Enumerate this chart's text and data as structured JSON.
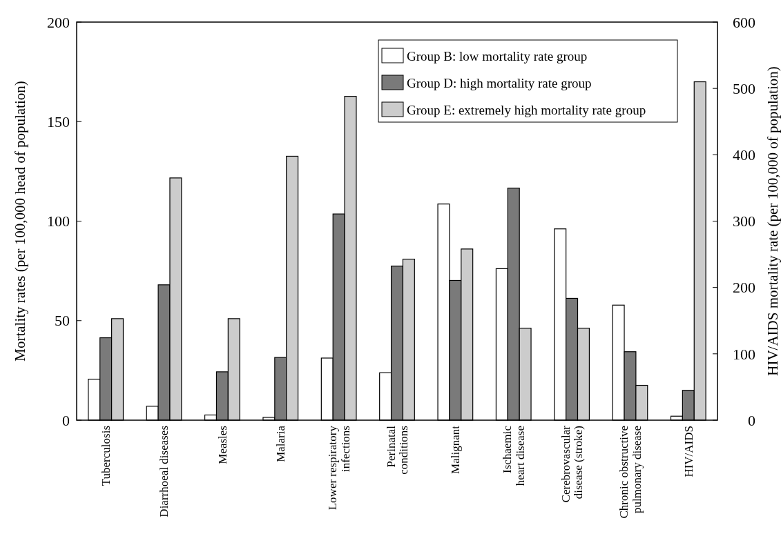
{
  "chart_data": {
    "type": "bar",
    "categories": [
      "Tuberculosis",
      "Diarrhoeal diseases",
      "Measles",
      "Malaria",
      "Lower respiratory\ninfections",
      "Perinatal\nconditions",
      "Malignant",
      "Ischaemic\nheart disease",
      "Cerebrovascular\ndisease (stroke)",
      "Chronic obstructive\npulmonary disease",
      "HIV/AIDS"
    ],
    "series": [
      {
        "name": "Group B: low mortality rate group",
        "color": "#ffffff",
        "values": [
          20.6,
          7,
          2.6,
          1.4,
          31.2,
          23.8,
          108.6,
          76.1,
          96.1,
          57.8,
          null
        ]
      },
      {
        "name": "Group D: high mortality rate group",
        "color": "#7a7a7a",
        "values": [
          41.4,
          68,
          24.3,
          31.5,
          103.6,
          77.4,
          70.2,
          116.6,
          61.2,
          34.4,
          null
        ]
      },
      {
        "name": "Group E: extremely high mortality rate group",
        "color": "#cccccc",
        "values": [
          51,
          121.7,
          51,
          132.6,
          162.7,
          80.9,
          86,
          46.2,
          46.2,
          17.5,
          null
        ]
      },
      {
        "color": "#ffffff",
        "axis": "y2",
        "values": [
          null,
          null,
          null,
          null,
          null,
          null,
          null,
          null,
          null,
          null,
          6
        ]
      },
      {
        "color": "#7a7a7a",
        "axis": "y2",
        "values": [
          null,
          null,
          null,
          null,
          null,
          null,
          null,
          null,
          null,
          null,
          45
        ]
      },
      {
        "color": "#cccccc",
        "axis": "y2",
        "values": [
          null,
          null,
          null,
          null,
          null,
          null,
          null,
          null,
          null,
          null,
          510
        ]
      }
    ],
    "ylabel": "Mortality rates (per 100,000 head of population)",
    "y2label": "HIV/AIDS mortality rate (per 100,000 of population)",
    "ylim": [
      0,
      200
    ],
    "yticks": [
      0,
      50,
      100,
      150,
      200
    ],
    "y2lim": [
      0,
      600
    ],
    "y2ticks": [
      0,
      100,
      200,
      300,
      400,
      500,
      600
    ],
    "legend": "top right",
    "grid": false
  }
}
